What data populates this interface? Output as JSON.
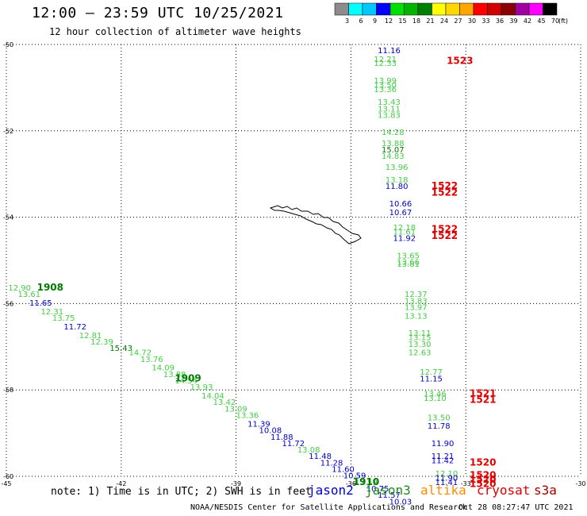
{
  "header": {
    "title": "12:00 — 23:59 UTC 10/25/2021",
    "subtitle": "12 hour collection of altimeter wave heights"
  },
  "colorbar": {
    "unit": "(ft)",
    "bins": [
      {
        "label": "3",
        "color": "#8c8c8c"
      },
      {
        "label": "6",
        "color": "#00ffff"
      },
      {
        "label": "9",
        "color": "#00c8ff"
      },
      {
        "label": "12",
        "color": "#0000ff"
      },
      {
        "label": "15",
        "color": "#00e000"
      },
      {
        "label": "18",
        "color": "#00b400"
      },
      {
        "label": "21",
        "color": "#008000"
      },
      {
        "label": "24",
        "color": "#ffff00"
      },
      {
        "label": "27",
        "color": "#ffd700"
      },
      {
        "label": "30",
        "color": "#ffa500"
      },
      {
        "label": "33",
        "color": "#ff0000"
      },
      {
        "label": "36",
        "color": "#d00000"
      },
      {
        "label": "39",
        "color": "#8b0000"
      },
      {
        "label": "42",
        "color": "#a000a0"
      },
      {
        "label": "45",
        "color": "#ff00ff"
      },
      {
        "label": "70",
        "color": "#000000"
      }
    ]
  },
  "axes": {
    "lon_ticks": [
      "-45",
      "-42",
      "-39",
      "-36",
      "-33",
      "-30"
    ],
    "lat_ticks": [
      "-50",
      "-52",
      "-54",
      "-56",
      "-58",
      "-60"
    ]
  },
  "colors": {
    "jason2": "#0000c8",
    "jason3": "#1e8c1e",
    "altika": "#ff8c00",
    "cryosat": "#dc0000",
    "s3a": "#a00000",
    "light_green": "#44cc44",
    "blue": "#0000cc",
    "dark_green": "#007a00",
    "red": "#dd0000"
  },
  "map": {
    "track_east": [
      {
        "lon": -35.3,
        "lat": -50.2,
        "text": "11.16",
        "c": "blue"
      },
      {
        "lon": -35.4,
        "lat": -50.4,
        "text": "12.21",
        "c": "light_green"
      },
      {
        "lon": -35.4,
        "lat": -50.5,
        "text": "12.33",
        "c": "light_green"
      },
      {
        "lon": -35.4,
        "lat": -50.9,
        "text": "13.99",
        "c": "light_green"
      },
      {
        "lon": -35.4,
        "lat": -51.0,
        "text": "13.50",
        "c": "light_green"
      },
      {
        "lon": -35.4,
        "lat": -51.1,
        "text": "13.36",
        "c": "light_green"
      },
      {
        "lon": -35.3,
        "lat": -51.4,
        "text": "13.43",
        "c": "light_green"
      },
      {
        "lon": -35.3,
        "lat": -51.55,
        "text": "13.11",
        "c": "light_green"
      },
      {
        "lon": -35.3,
        "lat": -51.7,
        "text": "13.83",
        "c": "light_green"
      },
      {
        "lon": -35.2,
        "lat": -52.1,
        "text": "14.28",
        "c": "light_green"
      },
      {
        "lon": -35.2,
        "lat": -52.35,
        "text": "13.88",
        "c": "light_green"
      },
      {
        "lon": -35.2,
        "lat": -52.5,
        "text": "15.07",
        "c": "dark_green"
      },
      {
        "lon": -35.2,
        "lat": -52.65,
        "text": "14.83",
        "c": "light_green"
      },
      {
        "lon": -35.1,
        "lat": -52.9,
        "text": "13.96",
        "c": "light_green"
      },
      {
        "lon": -35.1,
        "lat": -53.2,
        "text": "13.18",
        "c": "light_green"
      },
      {
        "lon": -35.1,
        "lat": -53.35,
        "text": "11.80",
        "c": "blue"
      },
      {
        "lon": -35.0,
        "lat": -53.75,
        "text": "10.66",
        "c": "blue"
      },
      {
        "lon": -35.0,
        "lat": -53.95,
        "text": "10.67",
        "c": "blue"
      },
      {
        "lon": -34.9,
        "lat": -54.3,
        "text": "12.18",
        "c": "light_green"
      },
      {
        "lon": -34.9,
        "lat": -54.4,
        "text": "11.61",
        "c": "light_green"
      },
      {
        "lon": -34.9,
        "lat": -54.55,
        "text": "11.92",
        "c": "blue"
      },
      {
        "lon": -34.8,
        "lat": -54.95,
        "text": "13.65",
        "c": "light_green"
      },
      {
        "lon": -34.8,
        "lat": -55.1,
        "text": "13.66",
        "c": "light_green"
      },
      {
        "lon": -34.8,
        "lat": -55.15,
        "text": "13.81",
        "c": "light_green"
      },
      {
        "lon": -34.6,
        "lat": -55.85,
        "text": "12.37",
        "c": "light_green"
      },
      {
        "lon": -34.6,
        "lat": -56.0,
        "text": "13.83",
        "c": "light_green"
      },
      {
        "lon": -34.6,
        "lat": -56.15,
        "text": "13.97",
        "c": "light_green"
      },
      {
        "lon": -34.6,
        "lat": -56.35,
        "text": "13.13",
        "c": "light_green"
      },
      {
        "lon": -34.5,
        "lat": -56.75,
        "text": "13.11",
        "c": "light_green"
      },
      {
        "lon": -34.5,
        "lat": -56.85,
        "text": "13.15",
        "c": "light_green"
      },
      {
        "lon": -34.5,
        "lat": -57.0,
        "text": "13.30",
        "c": "light_green"
      },
      {
        "lon": -34.5,
        "lat": -57.2,
        "text": "12.63",
        "c": "light_green"
      },
      {
        "lon": -34.2,
        "lat": -57.65,
        "text": "12.77",
        "c": "light_green"
      },
      {
        "lon": -34.2,
        "lat": -57.8,
        "text": "11.15",
        "c": "blue"
      },
      {
        "lon": -34.1,
        "lat": -58.15,
        "text": "13.46",
        "c": "light_green"
      },
      {
        "lon": -34.1,
        "lat": -58.25,
        "text": "13.10",
        "c": "light_green"
      },
      {
        "lon": -34.0,
        "lat": -58.7,
        "text": "13.50",
        "c": "light_green"
      },
      {
        "lon": -34.0,
        "lat": -58.9,
        "text": "11.78",
        "c": "blue"
      },
      {
        "lon": -33.9,
        "lat": -59.3,
        "text": "11.90",
        "c": "blue"
      },
      {
        "lon": -33.9,
        "lat": -59.6,
        "text": "11.21",
        "c": "blue"
      },
      {
        "lon": -33.9,
        "lat": -59.7,
        "text": "11.42",
        "c": "blue"
      },
      {
        "lon": -33.8,
        "lat": -60.0,
        "text": "12.10",
        "c": "light_green"
      },
      {
        "lon": -33.8,
        "lat": -60.1,
        "text": "11.90",
        "c": "blue"
      },
      {
        "lon": -33.8,
        "lat": -60.2,
        "text": "11.41",
        "c": "blue"
      }
    ],
    "time_east": [
      {
        "lon": -33.5,
        "lat": -50.45,
        "text": "1523",
        "c": "red"
      },
      {
        "lon": -33.9,
        "lat": -53.35,
        "text": "1522",
        "c": "red"
      },
      {
        "lon": -33.9,
        "lat": -53.5,
        "text": "1522",
        "c": "red"
      },
      {
        "lon": -33.9,
        "lat": -54.35,
        "text": "1522",
        "c": "red"
      },
      {
        "lon": -33.9,
        "lat": -54.5,
        "text": "1522",
        "c": "red"
      },
      {
        "lon": -32.9,
        "lat": -58.15,
        "text": "1521",
        "c": "red"
      },
      {
        "lon": -32.9,
        "lat": -58.3,
        "text": "1521",
        "c": "red"
      },
      {
        "lon": -32.9,
        "lat": -59.75,
        "text": "1520",
        "c": "red"
      },
      {
        "lon": -32.9,
        "lat": -60.05,
        "text": "1520",
        "c": "red"
      },
      {
        "lon": -32.9,
        "lat": -60.15,
        "text": "1520",
        "c": "red"
      },
      {
        "lon": -32.9,
        "lat": -60.25,
        "text": "1520",
        "c": "red"
      }
    ],
    "track_west": [
      {
        "lon": -44.95,
        "lat": -55.7,
        "text": "12.90",
        "c": "light_green"
      },
      {
        "lon": -44.7,
        "lat": -55.85,
        "text": "13.61",
        "c": "light_green"
      },
      {
        "lon": -44.4,
        "lat": -56.05,
        "text": "11.65",
        "c": "blue"
      },
      {
        "lon": -44.1,
        "lat": -56.25,
        "text": "12.31",
        "c": "light_green"
      },
      {
        "lon": -43.8,
        "lat": -56.4,
        "text": "13.75",
        "c": "light_green"
      },
      {
        "lon": -43.5,
        "lat": -56.6,
        "text": "11.72",
        "c": "blue"
      },
      {
        "lon": -43.1,
        "lat": -56.8,
        "text": "12.81",
        "c": "light_green"
      },
      {
        "lon": -42.8,
        "lat": -56.95,
        "text": "12.39",
        "c": "light_green"
      },
      {
        "lon": -42.3,
        "lat": -57.1,
        "text": "15.43",
        "c": "dark_green"
      },
      {
        "lon": -41.8,
        "lat": -57.2,
        "text": "14.72",
        "c": "light_green"
      },
      {
        "lon": -41.5,
        "lat": -57.35,
        "text": "13.76",
        "c": "light_green"
      },
      {
        "lon": -41.2,
        "lat": -57.55,
        "text": "14.09",
        "c": "light_green"
      },
      {
        "lon": -40.9,
        "lat": -57.7,
        "text": "13.88",
        "c": "light_green"
      },
      {
        "lon": -40.6,
        "lat": -57.85,
        "text": "14.54",
        "c": "light_green"
      },
      {
        "lon": -40.2,
        "lat": -58.0,
        "text": "13.93",
        "c": "light_green"
      },
      {
        "lon": -39.9,
        "lat": -58.2,
        "text": "14.04",
        "c": "light_green"
      },
      {
        "lon": -39.6,
        "lat": -58.35,
        "text": "13.42",
        "c": "light_green"
      },
      {
        "lon": -39.3,
        "lat": -58.5,
        "text": "13.09",
        "c": "light_green"
      },
      {
        "lon": -39.0,
        "lat": -58.65,
        "text": "13.36",
        "c": "light_green"
      },
      {
        "lon": -38.7,
        "lat": -58.85,
        "text": "11.39",
        "c": "blue"
      },
      {
        "lon": -38.4,
        "lat": -59.0,
        "text": "10.08",
        "c": "blue"
      },
      {
        "lon": -38.1,
        "lat": -59.15,
        "text": "11.88",
        "c": "blue"
      },
      {
        "lon": -37.8,
        "lat": -59.3,
        "text": "11.72",
        "c": "blue"
      },
      {
        "lon": -37.4,
        "lat": -59.45,
        "text": "13.08",
        "c": "light_green"
      },
      {
        "lon": -37.1,
        "lat": -59.6,
        "text": "11.48",
        "c": "blue"
      },
      {
        "lon": -36.8,
        "lat": -59.75,
        "text": "11.28",
        "c": "blue"
      },
      {
        "lon": -36.5,
        "lat": -59.9,
        "text": "11.60",
        "c": "blue"
      },
      {
        "lon": -36.2,
        "lat": -60.05,
        "text": "10.59",
        "c": "blue"
      },
      {
        "lon": -35.9,
        "lat": -60.2,
        "text": "12.59",
        "c": "light_green"
      },
      {
        "lon": -35.6,
        "lat": -60.35,
        "text": "10.75",
        "c": "blue"
      },
      {
        "lon": -35.3,
        "lat": -60.5,
        "text": "11.57",
        "c": "blue"
      },
      {
        "lon": -35.0,
        "lat": -60.65,
        "text": "10.03",
        "c": "blue"
      }
    ],
    "time_west": [
      {
        "lon": -44.2,
        "lat": -55.7,
        "text": "1908",
        "c": "dark_green"
      },
      {
        "lon": -40.6,
        "lat": -57.8,
        "text": "1909",
        "c": "dark_green"
      },
      {
        "lon": -35.95,
        "lat": -60.2,
        "text": "1910",
        "c": "dark_green"
      }
    ]
  },
  "note": "note: 1) Time is in UTC; 2) SWH is in feet",
  "legend": {
    "jason2": "jason2",
    "jason3": "jason3",
    "altika": "altika",
    "cryosat": "cryosat",
    "s3a": "s3a"
  },
  "footer": {
    "credit": "NOAA/NESDIS Center for Satellite Applications and Research",
    "stamp": "Oct 28 08:27:47 UTC 2021"
  }
}
